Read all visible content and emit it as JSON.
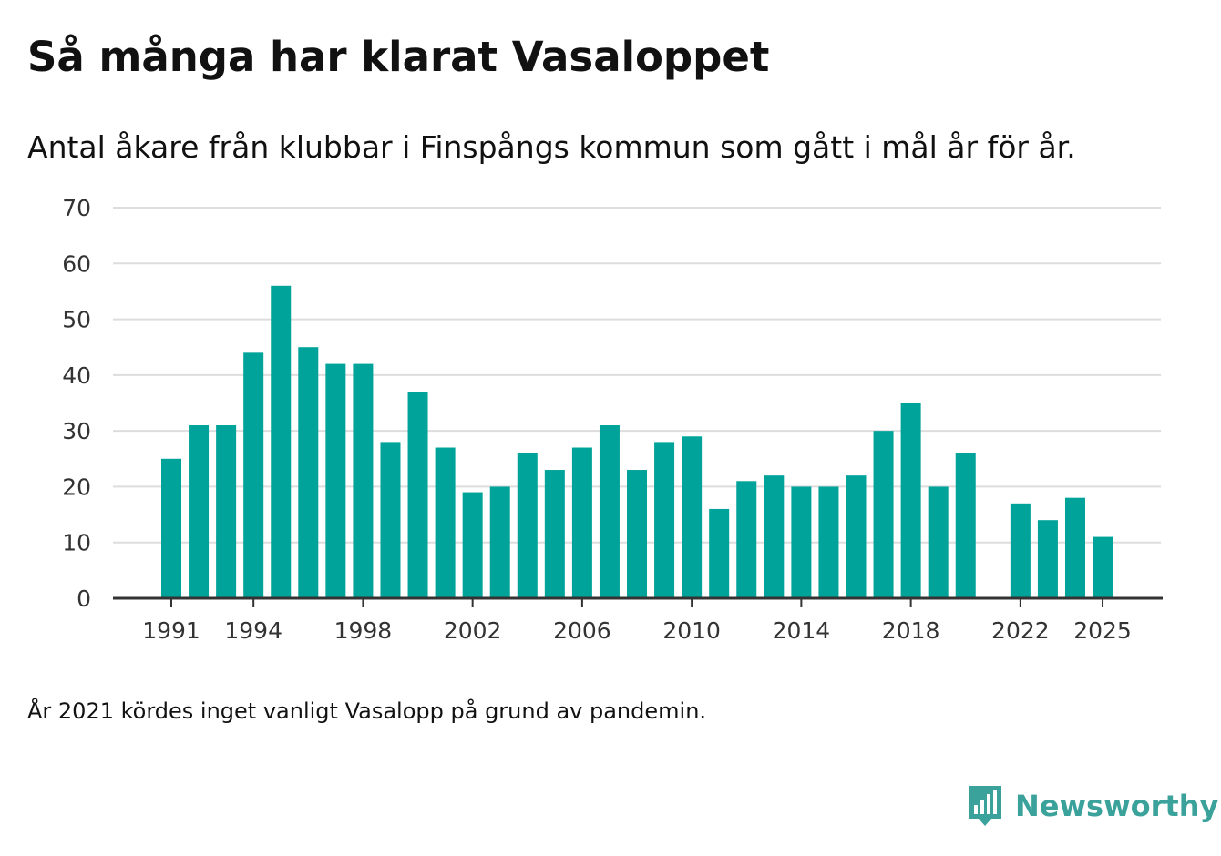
{
  "title": "Så många har klarat Vasaloppet",
  "subtitle": "Antal åkare från klubbar i Finspångs kommun som gått i mål år för år.",
  "note": "År 2021 kördes inget vanligt Vasalopp på grund av pandemin.",
  "brand": {
    "name": "Newsworthy",
    "color": "#3aa29a",
    "icon": "bar-chart-speech-bubble-icon"
  },
  "colors": {
    "bar": "#00a399",
    "grid": "#dddddd",
    "axis": "#333333",
    "text": "#111111"
  },
  "chart_data": {
    "type": "bar",
    "title": "Så många har klarat Vasaloppet",
    "xlabel": "",
    "ylabel": "",
    "categories": [
      1991,
      1992,
      1993,
      1994,
      1995,
      1996,
      1997,
      1998,
      1999,
      2000,
      2001,
      2002,
      2003,
      2004,
      2005,
      2006,
      2007,
      2008,
      2009,
      2010,
      2011,
      2012,
      2013,
      2014,
      2015,
      2016,
      2017,
      2018,
      2019,
      2020,
      2021,
      2022,
      2023,
      2024,
      2025
    ],
    "values": [
      25,
      31,
      31,
      44,
      56,
      45,
      42,
      42,
      28,
      37,
      27,
      19,
      20,
      26,
      23,
      27,
      31,
      23,
      28,
      29,
      16,
      21,
      22,
      20,
      20,
      22,
      30,
      35,
      20,
      26,
      null,
      17,
      14,
      18,
      11
    ],
    "ylim": [
      0,
      70
    ],
    "yticks": [
      0,
      10,
      20,
      30,
      40,
      50,
      60,
      70
    ],
    "xticks": [
      1991,
      1994,
      1998,
      2002,
      2006,
      2010,
      2014,
      2018,
      2022,
      2025
    ],
    "grid": true
  }
}
